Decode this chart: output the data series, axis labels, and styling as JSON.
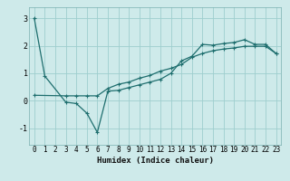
{
  "xlabel": "Humidex (Indice chaleur)",
  "background_color": "#ceeaea",
  "grid_color": "#9ecece",
  "line_color": "#1e6e6e",
  "xlim": [
    -0.5,
    23.5
  ],
  "ylim": [
    -1.6,
    3.4
  ],
  "xticks": [
    0,
    1,
    2,
    3,
    4,
    5,
    6,
    7,
    8,
    9,
    10,
    11,
    12,
    13,
    14,
    15,
    16,
    17,
    18,
    19,
    20,
    21,
    22,
    23
  ],
  "yticks": [
    -1,
    0,
    1,
    2,
    3
  ],
  "line1_x": [
    0,
    1,
    3,
    4,
    5,
    6,
    7,
    8,
    9,
    10,
    11,
    12,
    13,
    14,
    15,
    16,
    17,
    18,
    19,
    20,
    21,
    22,
    23
  ],
  "line1_y": [
    3.0,
    0.9,
    -0.05,
    -0.1,
    -0.45,
    -1.15,
    0.35,
    0.38,
    0.48,
    0.58,
    0.68,
    0.78,
    1.0,
    1.45,
    1.62,
    2.05,
    2.02,
    2.08,
    2.12,
    2.22,
    2.05,
    2.05,
    1.72
  ],
  "line2_x": [
    0,
    3,
    4,
    5,
    6,
    7,
    8,
    9,
    10,
    11,
    12,
    13,
    14,
    15,
    16,
    17,
    18,
    19,
    20,
    21,
    22,
    23
  ],
  "line2_y": [
    0.2,
    0.18,
    0.18,
    0.18,
    0.18,
    0.45,
    0.6,
    0.68,
    0.82,
    0.92,
    1.08,
    1.18,
    1.32,
    1.58,
    1.72,
    1.82,
    1.88,
    1.92,
    1.98,
    1.98,
    1.98,
    1.72
  ],
  "xlabel_fontsize": 6.5,
  "tick_fontsize": 5.5
}
